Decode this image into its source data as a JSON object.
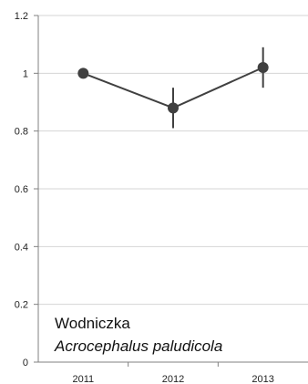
{
  "chart_data": {
    "type": "line",
    "title": "",
    "xlabel": "",
    "ylabel": "",
    "categories": [
      "2011",
      "2012",
      "2013"
    ],
    "ylim": [
      0,
      1.2
    ],
    "y_ticks": [
      "0",
      "0.2",
      "0.4",
      "0.6",
      "0.8",
      "1",
      "1.2"
    ],
    "grid": true,
    "series": [
      {
        "values": [
          1.0,
          0.88,
          1.02
        ],
        "error": [
          0.0,
          0.07,
          0.07
        ],
        "color": "#404040"
      }
    ],
    "annotation": {
      "common_name": "Wodniczka",
      "latin_name": "Acrocephalus paludicola"
    }
  }
}
